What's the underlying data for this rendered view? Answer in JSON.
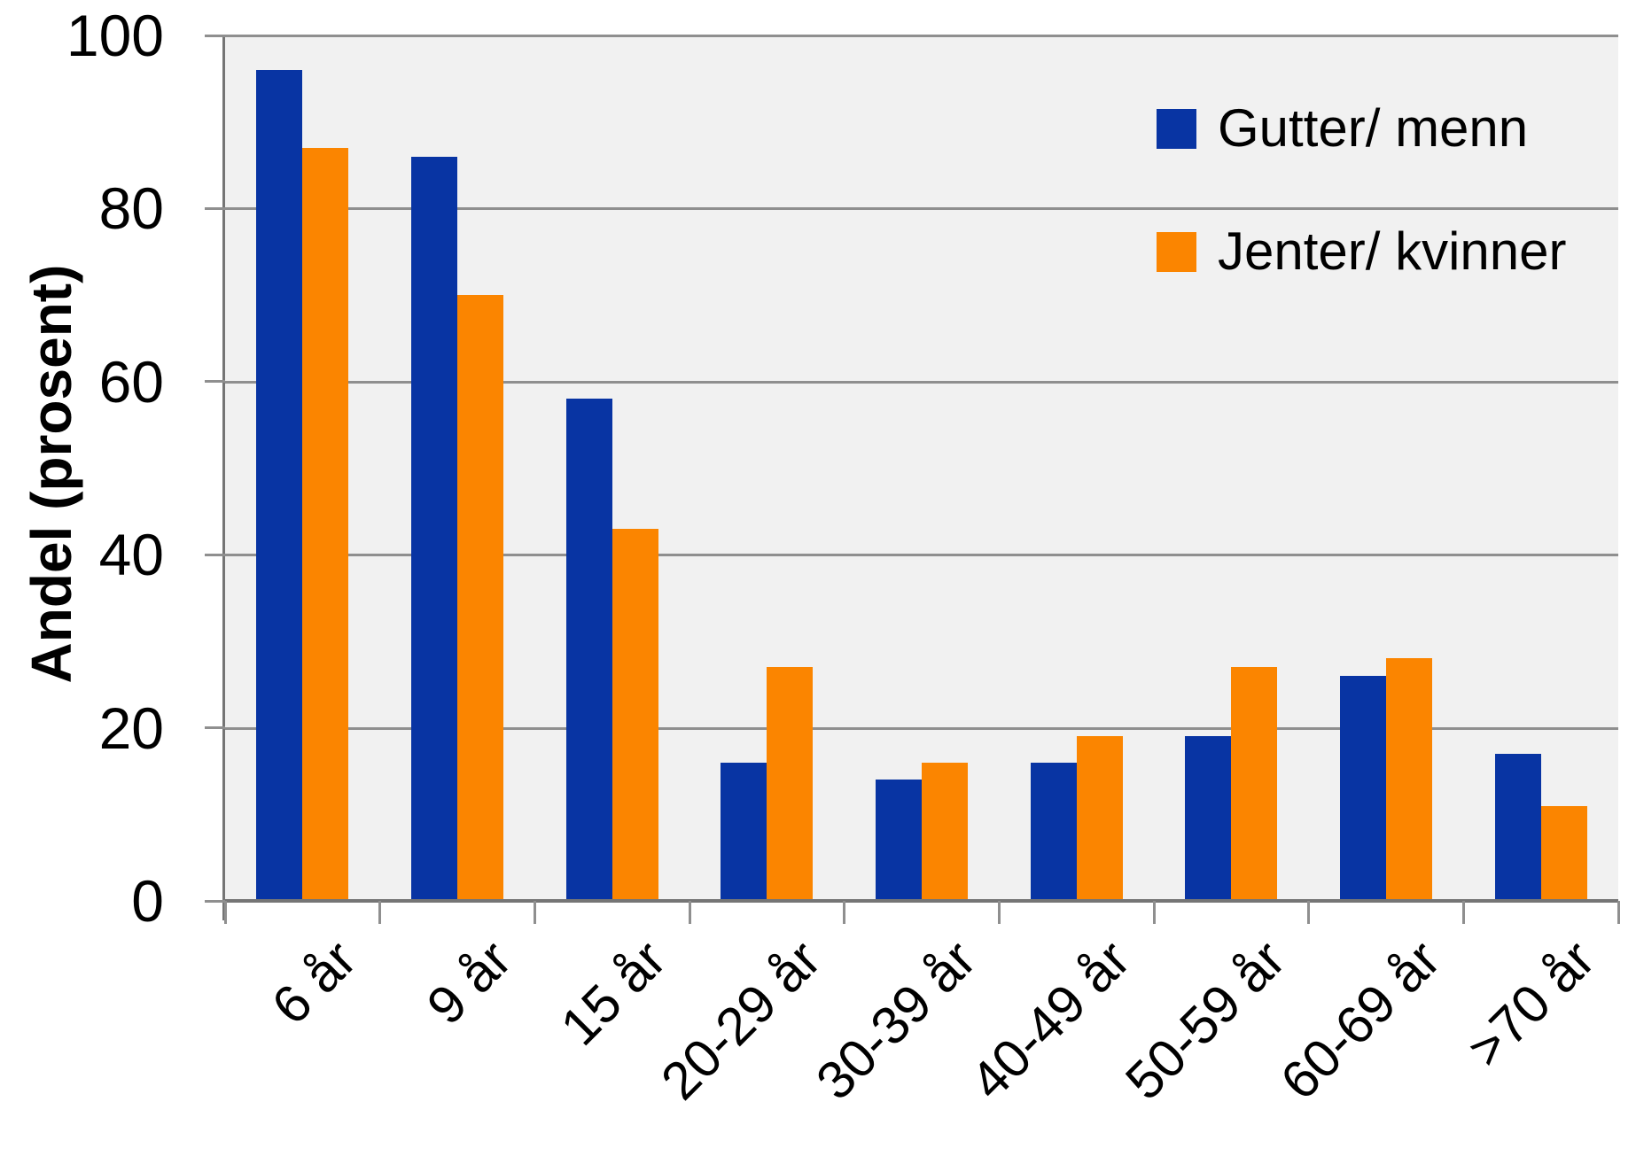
{
  "y_axis": {
    "title": "Andel (prosent)",
    "ticks": [
      0,
      20,
      40,
      60,
      80,
      100
    ]
  },
  "legend": {
    "items": [
      {
        "label": "Gutter/ menn",
        "color": "#0834A3"
      },
      {
        "label": "Jenter/ kvinner",
        "color": "#FB8500"
      }
    ]
  },
  "colors": {
    "series_blue": "#0834A3",
    "series_orange": "#FB8500",
    "plot_background": "#F1F1F1",
    "gridline": "#8F8F8F",
    "axis_line": "#757575",
    "text": "#000000"
  },
  "chart_data": {
    "type": "bar",
    "title": "",
    "xlabel": "",
    "ylabel": "Andel (prosent)",
    "ylim": [
      0,
      100
    ],
    "ytick_step": 20,
    "grid": true,
    "legend_position": "top-right-inside",
    "categories": [
      "6 år",
      "9 år",
      "15 år",
      "20-29 år",
      "30-39 år",
      "40-49 år",
      "50-59 år",
      "60-69 år",
      ">70 år"
    ],
    "series": [
      {
        "name": "Gutter/ menn",
        "color": "#0834A3",
        "values": [
          96,
          86,
          58,
          16,
          14,
          16,
          19,
          26,
          17
        ]
      },
      {
        "name": "Jenter/ kvinner",
        "color": "#FB8500",
        "values": [
          87,
          70,
          43,
          27,
          16,
          19,
          27,
          28,
          11
        ]
      }
    ]
  }
}
